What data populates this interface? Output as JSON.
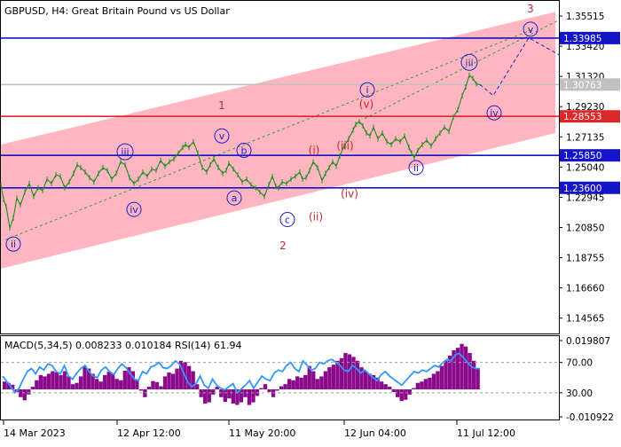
{
  "header": {
    "title": "GBPUSD, H4:  Great Britain Pound vs US Dollar"
  },
  "chart_data": {
    "type": "line",
    "symbol": "GBPUSD",
    "timeframe": "H4",
    "title": "GBPUSD, H4:  Great Britain Pound vs US Dollar",
    "price_axis": {
      "range": [
        1.135,
        1.365
      ],
      "ticks": [
        "1.35515",
        "1.33420",
        "1.31320",
        "1.29230",
        "1.27135",
        "1.25040",
        "1.22945",
        "1.20850",
        "1.18755",
        "1.16660",
        "1.14565"
      ]
    },
    "time_axis": {
      "labels": [
        "14 Mar 2023",
        "12 Apr 12:00",
        "11 May 20:00",
        "12 Jun 04:00",
        "11 Jul 12:00"
      ]
    },
    "grid": false,
    "price_series": {
      "name": "GBPUSD",
      "x": [
        0,
        3,
        6,
        10,
        14,
        18,
        22,
        27,
        32,
        37,
        42,
        47,
        52,
        57,
        62,
        67,
        72,
        77,
        82,
        86,
        90,
        95,
        100,
        105,
        110,
        115,
        120,
        125,
        130,
        135,
        140,
        145,
        150,
        155,
        160,
        165,
        170,
        175,
        180,
        185,
        190,
        195,
        200,
        205,
        208,
        212,
        217,
        222,
        227,
        232,
        236,
        240,
        245,
        250,
        254,
        257,
        262,
        267,
        272,
        277,
        282,
        287,
        292,
        297,
        302,
        306,
        310,
        313,
        317,
        322,
        327,
        332,
        337,
        340,
        344,
        348,
        352,
        357,
        362,
        366,
        370,
        374,
        378,
        382,
        387,
        392,
        397,
        400,
        404,
        408,
        412,
        416,
        420,
        425,
        430,
        435,
        440,
        445,
        450,
        455,
        460,
        463,
        466,
        470,
        475,
        480,
        485,
        490,
        495,
        500,
        505,
        510,
        515,
        520,
        524,
        528,
        532,
        536,
        540
      ],
      "y": [
        1.238,
        1.228,
        1.223,
        1.208,
        1.215,
        1.229,
        1.224,
        1.233,
        1.239,
        1.23,
        1.236,
        1.234,
        1.242,
        1.239,
        1.245,
        1.244,
        1.236,
        1.24,
        1.246,
        1.252,
        1.25,
        1.247,
        1.243,
        1.24,
        1.246,
        1.25,
        1.248,
        1.242,
        1.246,
        1.254,
        1.252,
        1.243,
        1.239,
        1.242,
        1.247,
        1.244,
        1.249,
        1.248,
        1.255,
        1.251,
        1.254,
        1.256,
        1.26,
        1.264,
        1.266,
        1.264,
        1.268,
        1.26,
        1.25,
        1.247,
        1.252,
        1.256,
        1.25,
        1.246,
        1.248,
        1.253,
        1.249,
        1.245,
        1.24,
        1.242,
        1.238,
        1.236,
        1.233,
        1.23,
        1.238,
        1.244,
        1.237,
        1.236,
        1.24,
        1.239,
        1.242,
        1.244,
        1.247,
        1.242,
        1.243,
        1.248,
        1.254,
        1.25,
        1.241,
        1.246,
        1.25,
        1.254,
        1.251,
        1.258,
        1.265,
        1.27,
        1.276,
        1.28,
        1.282,
        1.279,
        1.274,
        1.272,
        1.278,
        1.27,
        1.274,
        1.268,
        1.266,
        1.27,
        1.268,
        1.272,
        1.264,
        1.26,
        1.257,
        1.262,
        1.266,
        1.269,
        1.265,
        1.27,
        1.274,
        1.278,
        1.275,
        1.285,
        1.29,
        1.3,
        1.306,
        1.314,
        1.312,
        1.308,
        1.3076
      ]
    },
    "levels": [
      {
        "value": 1.33985,
        "label": "1.33985",
        "color": "#1414c8"
      },
      {
        "value": 1.30763,
        "label": "1.30763",
        "color": "#c0c0c0"
      },
      {
        "value": 1.28553,
        "label": "1.28553",
        "color": "#dc2828"
      },
      {
        "value": 1.2585,
        "label": "1.25850",
        "color": "#1414c8"
      },
      {
        "value": 1.236,
        "label": "1.23600",
        "color": "#1414c8"
      }
    ],
    "channel": {
      "upper": {
        "x": [
          0,
          625
        ],
        "y": [
          1.266,
          1.358
        ]
      },
      "lower": {
        "x": [
          0,
          625
        ],
        "y": [
          1.18,
          1.274
        ]
      },
      "color": "#ffb6c1"
    },
    "dashed_lines": [
      {
        "x": [
          5,
          600
        ],
        "y": [
          1.2,
          1.346
        ]
      },
      {
        "x": [
          410,
          628
        ],
        "y": [
          1.284,
          1.352
        ]
      }
    ],
    "forecast_path": {
      "x": [
        540,
        555,
        595,
        630
      ],
      "y": [
        1.3076,
        1.3,
        1.34,
        1.328
      ]
    },
    "wave_labels": [
      {
        "text": "ii",
        "x": 14,
        "y": 1.197,
        "style": "circle",
        "color": "#2020c8"
      },
      {
        "text": "iii",
        "x": 140,
        "y": 1.261,
        "style": "circle",
        "color": "#2020c8"
      },
      {
        "text": "iv",
        "x": 150,
        "y": 1.221,
        "style": "circle",
        "color": "#2020c8"
      },
      {
        "text": "1",
        "x": 249,
        "y": 1.293,
        "style": "plain",
        "color": "#b03030"
      },
      {
        "text": "v",
        "x": 249,
        "y": 1.272,
        "style": "circle",
        "color": "#2020c8"
      },
      {
        "text": "b",
        "x": 274,
        "y": 1.262,
        "style": "circle",
        "color": "#2020c8"
      },
      {
        "text": "a",
        "x": 263,
        "y": 1.229,
        "style": "circle",
        "color": "#2020c8"
      },
      {
        "text": "c",
        "x": 323,
        "y": 1.214,
        "style": "circle",
        "color": "#2020c8"
      },
      {
        "text": "2",
        "x": 318,
        "y": 1.196,
        "style": "plain",
        "color": "#b03030"
      },
      {
        "text": "(i)",
        "x": 353,
        "y": 1.262,
        "style": "plain",
        "color": "#c82828"
      },
      {
        "text": "(ii)",
        "x": 355,
        "y": 1.216,
        "style": "plain",
        "color": "#c82828"
      },
      {
        "text": "(iii)",
        "x": 388,
        "y": 1.265,
        "style": "plain",
        "color": "#c82828"
      },
      {
        "text": "(iv)",
        "x": 393,
        "y": 1.232,
        "style": "plain",
        "color": "#c82828"
      },
      {
        "text": "(v)",
        "x": 412,
        "y": 1.294,
        "style": "plain",
        "color": "#c82828"
      },
      {
        "text": "i",
        "x": 413,
        "y": 1.304,
        "style": "circle",
        "color": "#2020c8"
      },
      {
        "text": "ii",
        "x": 468,
        "y": 1.25,
        "style": "circle",
        "color": "#2020c8"
      },
      {
        "text": "iii",
        "x": 528,
        "y": 1.323,
        "style": "circle",
        "color": "#2020c8"
      },
      {
        "text": "iv",
        "x": 556,
        "y": 1.288,
        "style": "circle",
        "color": "#2020c8"
      },
      {
        "text": "v",
        "x": 597,
        "y": 1.346,
        "style": "circle",
        "color": "#2020c8"
      },
      {
        "text": "3",
        "x": 597,
        "y": 1.36,
        "style": "plain",
        "color": "#b03030"
      }
    ],
    "colors": {
      "up_candle": "#1e8c1e",
      "down_candle": "#1e8c1e",
      "level_blue": "#1414c8",
      "level_red": "#dc2828",
      "level_grey": "#c0c0c0"
    }
  },
  "indicator": {
    "label": "MACD(5,34,5) 0.008233 0.010184 RSI(14) 61.94",
    "macd_range": [
      -0.010922,
      0.019807
    ],
    "ticks": [
      "0.019807",
      "70.00",
      "30.00",
      "-0.010922"
    ],
    "rsi_levels": [
      70,
      30
    ],
    "macd_color": "#8b0a8b",
    "rsi_color": "#3296ff",
    "macd_hist": [
      0.003,
      0.0025,
      0.0018,
      -0.001,
      -0.003,
      -0.0042,
      -0.002,
      0.001,
      0.0035,
      0.0055,
      0.005,
      0.006,
      0.007,
      0.0065,
      0.0055,
      0.007,
      0.005,
      0.002,
      0.0025,
      0.005,
      0.009,
      0.008,
      0.006,
      0.004,
      0.003,
      0.0055,
      0.0068,
      0.0062,
      0.004,
      0.0035,
      0.0072,
      0.0085,
      0.007,
      0.0038,
      -0.0005,
      -0.003,
      0.001,
      0.0032,
      0.0028,
      0.0012,
      0.005,
      0.0065,
      0.006,
      0.008,
      0.011,
      0.0105,
      0.009,
      0.007,
      0.002,
      -0.003,
      -0.0055,
      -0.005,
      -0.002,
      0.001,
      -0.003,
      -0.0048,
      -0.0035,
      -0.0055,
      -0.006,
      -0.005,
      -0.003,
      -0.006,
      -0.005,
      -0.0025,
      0.0005,
      0.002,
      -0.001,
      -0.003,
      -0.0005,
      0.0012,
      0.002,
      0.004,
      0.0035,
      0.005,
      0.0045,
      0.0055,
      0.009,
      0.007,
      0.004,
      0.005,
      0.007,
      0.0085,
      0.0095,
      0.011,
      0.012,
      0.014,
      0.0135,
      0.0125,
      0.011,
      0.0085,
      0.007,
      0.006,
      0.0055,
      0.0045,
      0.003,
      0.002,
      0.001,
      -0.001,
      -0.003,
      -0.0045,
      -0.004,
      -0.002,
      0.0005,
      0.0025,
      0.003,
      0.004,
      0.0045,
      0.006,
      0.007,
      0.009,
      0.011,
      0.013,
      0.015,
      0.016,
      0.0175,
      0.0165,
      0.014,
      0.011,
      0.0082
    ],
    "rsi": [
      52,
      45,
      38,
      30,
      36,
      48,
      58,
      62,
      55,
      64,
      60,
      68,
      66,
      58,
      55,
      66,
      52,
      48,
      56,
      62,
      66,
      58,
      52,
      50,
      60,
      64,
      58,
      54,
      62,
      68,
      63,
      55,
      48,
      46,
      58,
      55,
      64,
      66,
      70,
      63,
      62,
      66,
      72,
      68,
      56,
      44,
      38,
      42,
      52,
      40,
      36,
      48,
      40,
      36,
      34,
      38,
      42,
      30,
      35,
      40,
      46,
      36,
      44,
      52,
      48,
      46,
      56,
      60,
      58,
      66,
      70,
      62,
      58,
      72,
      66,
      60,
      62,
      70,
      68,
      72,
      74,
      70,
      66,
      60,
      58,
      66,
      62,
      56,
      60,
      55,
      50,
      46,
      54,
      58,
      52,
      48,
      44,
      40,
      46,
      52,
      58,
      56,
      60,
      58,
      62,
      66,
      64,
      70,
      74,
      72,
      80,
      82,
      76,
      70,
      64,
      62,
      61.94
    ]
  }
}
